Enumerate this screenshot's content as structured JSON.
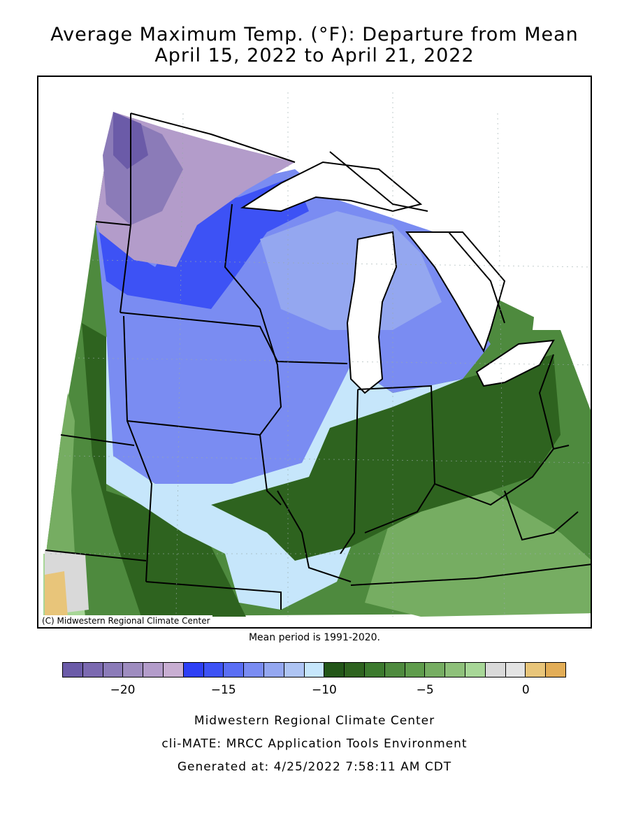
{
  "title_line1": "Average Maximum Temp. (°F): Departure from Mean",
  "title_line2": "April 15, 2022 to April 21, 2022",
  "copyright": "(C) Midwestern Regional Climate Center",
  "mean_period": "Mean period is 1991-2020.",
  "legend": {
    "colors": [
      "#6b5ba8",
      "#7b69b0",
      "#8b7bb8",
      "#9e8cbf",
      "#b39cca",
      "#c8aed2",
      "#2d3ff5",
      "#3d52f5",
      "#5a6ef4",
      "#7a8cf2",
      "#94a7f0",
      "#aec4f3",
      "#c6e6fb",
      "#235618",
      "#2e631f",
      "#3c7a2e",
      "#4e8a3e",
      "#5f9c4c",
      "#76ad62",
      "#8ec07a",
      "#a7d697",
      "#d9d9d9",
      "#e3e3e3",
      "#e8c57a",
      "#e2ad57"
    ],
    "tick_labels": [
      "-20",
      "-15",
      "-10",
      "-5",
      "0"
    ],
    "tick_values": [
      -20,
      -15,
      -10,
      -5,
      0
    ]
  },
  "footer_line1": "Midwestern Regional Climate Center",
  "footer_line2": "cli-MATE: MRCC Application Tools Environment",
  "footer_line3": "Generated at: 4/25/2022 7:58:11 AM CDT"
}
